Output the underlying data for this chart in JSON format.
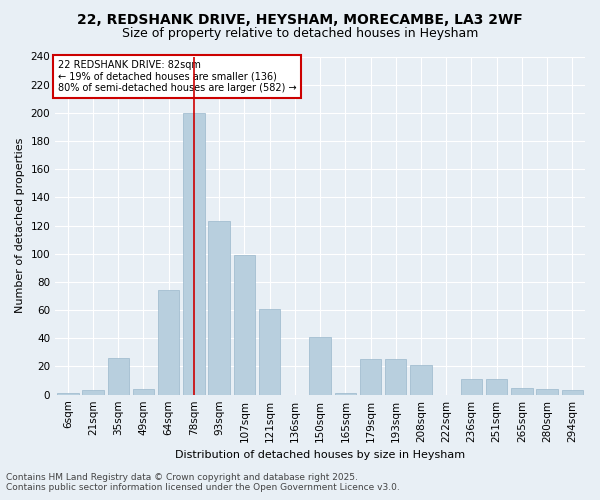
{
  "title1": "22, REDSHANK DRIVE, HEYSHAM, MORECAMBE, LA3 2WF",
  "title2": "Size of property relative to detached houses in Heysham",
  "xlabel": "Distribution of detached houses by size in Heysham",
  "ylabel": "Number of detached properties",
  "categories": [
    "6sqm",
    "21sqm",
    "35sqm",
    "49sqm",
    "64sqm",
    "78sqm",
    "93sqm",
    "107sqm",
    "121sqm",
    "136sqm",
    "150sqm",
    "165sqm",
    "179sqm",
    "193sqm",
    "208sqm",
    "222sqm",
    "236sqm",
    "251sqm",
    "265sqm",
    "280sqm",
    "294sqm"
  ],
  "values": [
    1,
    3,
    26,
    4,
    74,
    200,
    123,
    99,
    61,
    0,
    41,
    1,
    25,
    25,
    21,
    0,
    11,
    11,
    5,
    4,
    3
  ],
  "bar_color": "#b8cfde",
  "bar_edgecolor": "#9ab8cc",
  "vline_index": 5,
  "vline_color": "#cc0000",
  "annotation_title": "22 REDSHANK DRIVE: 82sqm",
  "annotation_line1": "← 19% of detached houses are smaller (136)",
  "annotation_line2": "80% of semi-detached houses are larger (582) →",
  "annotation_box_facecolor": "#ffffff",
  "annotation_box_edgecolor": "#cc0000",
  "ylim": [
    0,
    240
  ],
  "yticks": [
    0,
    20,
    40,
    60,
    80,
    100,
    120,
    140,
    160,
    180,
    200,
    220,
    240
  ],
  "footer1": "Contains HM Land Registry data © Crown copyright and database right 2025.",
  "footer2": "Contains public sector information licensed under the Open Government Licence v3.0.",
  "background_color": "#e8eff5",
  "plot_background_color": "#e8eff5",
  "grid_color": "#ffffff",
  "title1_fontsize": 10,
  "title2_fontsize": 9,
  "axis_label_fontsize": 8,
  "tick_fontsize": 7.5,
  "annotation_fontsize": 7,
  "footer_fontsize": 6.5
}
